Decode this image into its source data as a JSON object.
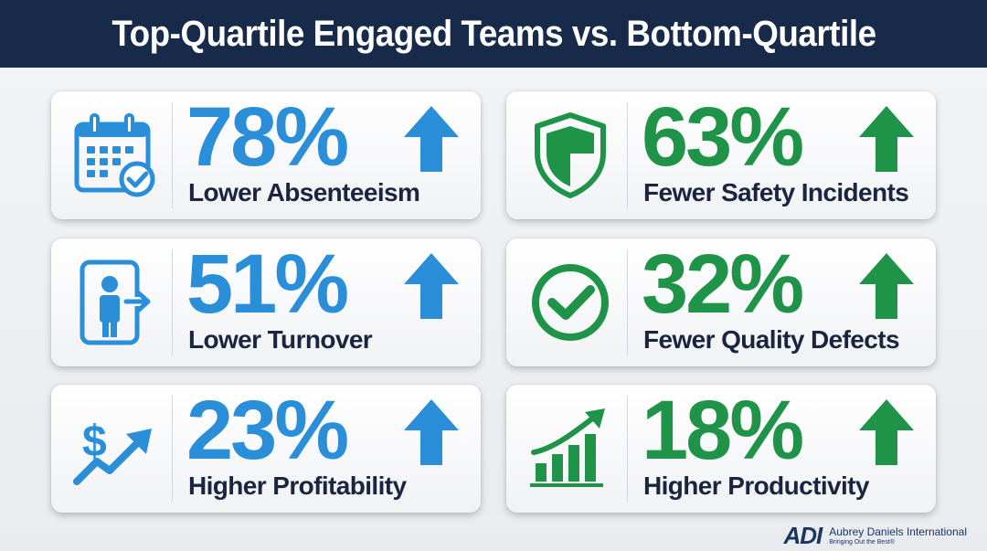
{
  "title": "Top-Quartile Engaged Teams vs. Bottom-Quartile",
  "colors": {
    "header_bg": "#172a4a",
    "blue": "#2a8ed8",
    "green": "#1f9448",
    "label": "#1b2540"
  },
  "cards": [
    {
      "value": "78%",
      "label": "Lower Absenteeism",
      "icon": "calendar-check-icon",
      "color": "blue"
    },
    {
      "value": "63%",
      "label": "Fewer Safety Incidents",
      "icon": "shield-icon",
      "color": "green"
    },
    {
      "value": "51%",
      "label": "Lower Turnover",
      "icon": "person-exit-icon",
      "color": "blue"
    },
    {
      "value": "32%",
      "label": "Fewer Quality Defects",
      "icon": "checkmark-circle-icon",
      "color": "green"
    },
    {
      "value": "23%",
      "label": "Higher Profitability",
      "icon": "dollar-trend-icon",
      "color": "blue"
    },
    {
      "value": "18%",
      "label": "Higher Productivity",
      "icon": "bar-chart-growth-icon",
      "color": "green"
    }
  ],
  "footer": {
    "logo": "ADI",
    "company": "Aubrey Daniels International",
    "tagline": "Bringing Out the Best®"
  }
}
